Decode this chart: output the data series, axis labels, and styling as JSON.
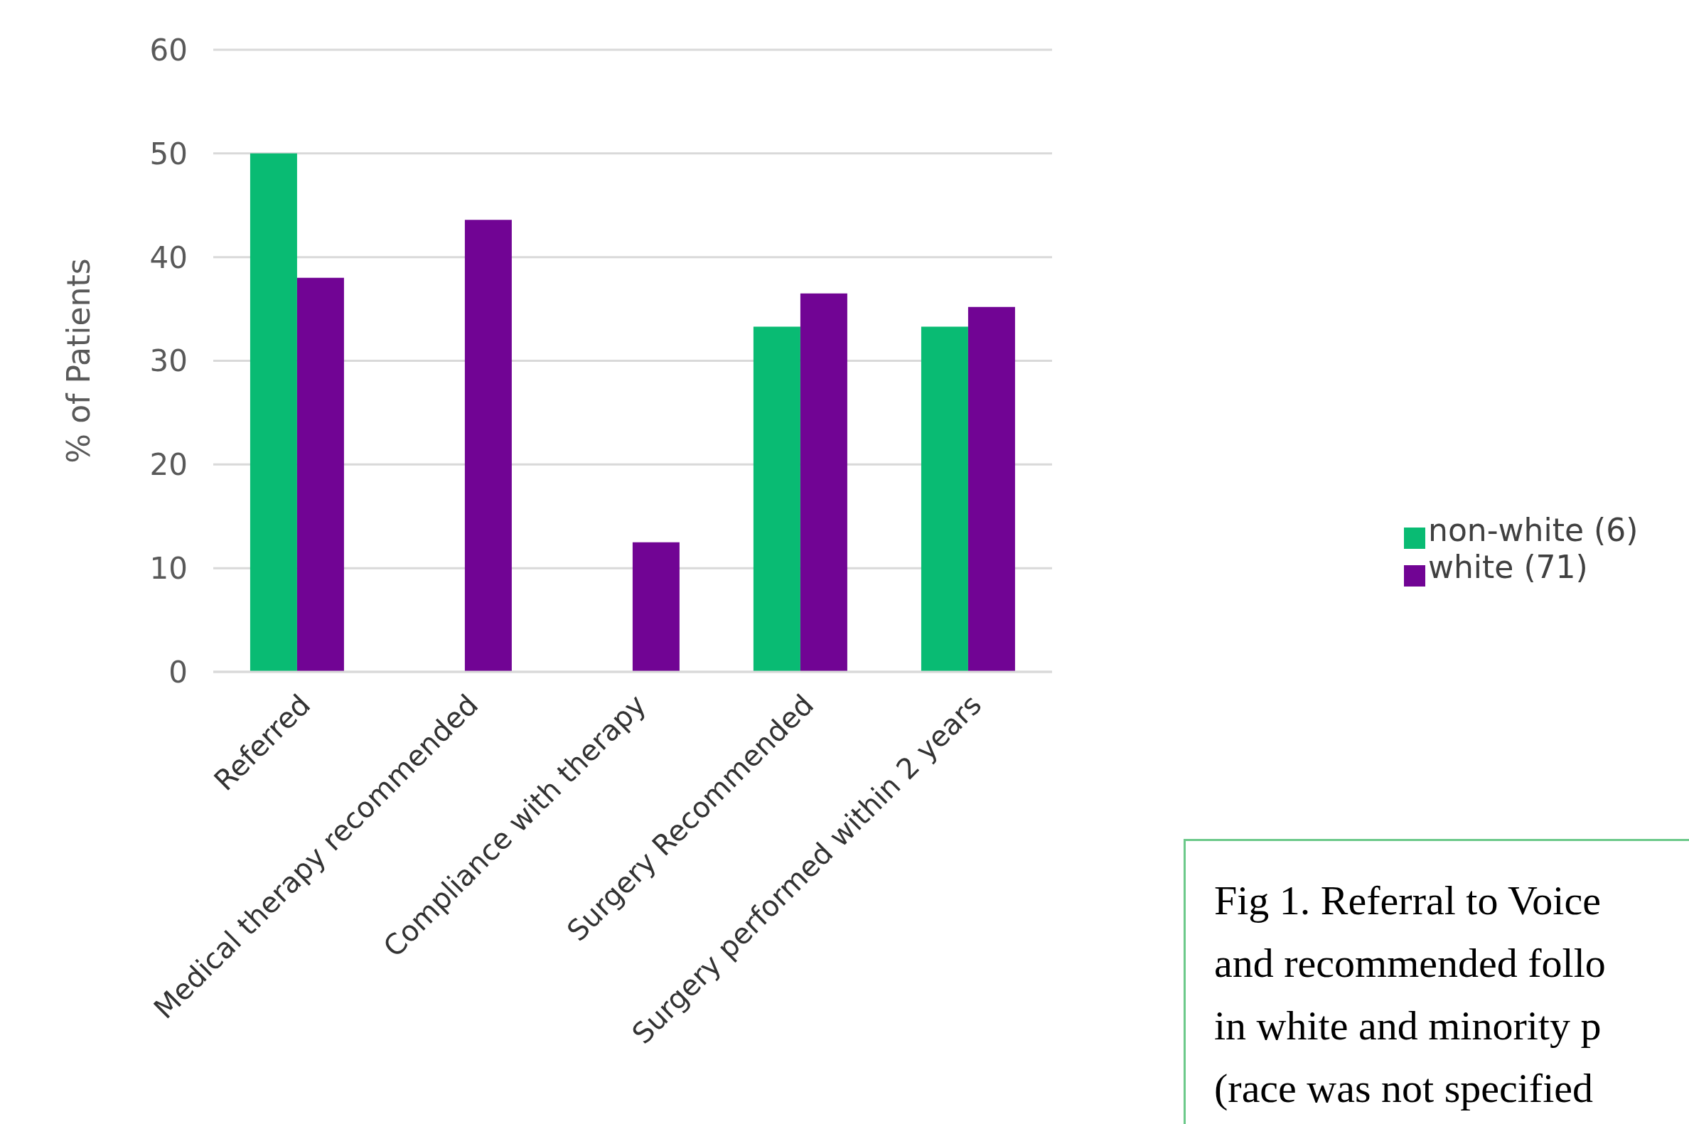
{
  "chart_data": {
    "type": "bar",
    "ylabel": "% of Patients",
    "categories": [
      "Referred",
      "Medical therapy recommended",
      "Compliance with therapy",
      "Surgery Recommended",
      "Surgery performed within 2 years"
    ],
    "series": [
      {
        "name": "non-white (6)",
        "color": "#09bb73",
        "values": [
          50,
          0,
          0,
          33.3,
          33.3
        ]
      },
      {
        "name": "white (71)",
        "color": "#710494",
        "values": [
          38,
          43.6,
          12.5,
          36.5,
          35.2
        ]
      }
    ],
    "ylim": [
      0,
      60
    ],
    "yticks": [
      0,
      10,
      20,
      30,
      40,
      50,
      60
    ],
    "grid": "y",
    "legend": "right",
    "annotations": [
      "Fig 1. Referral to Voice\nand recommended follo\nin white and minority p\n(race was not specified"
    ]
  }
}
